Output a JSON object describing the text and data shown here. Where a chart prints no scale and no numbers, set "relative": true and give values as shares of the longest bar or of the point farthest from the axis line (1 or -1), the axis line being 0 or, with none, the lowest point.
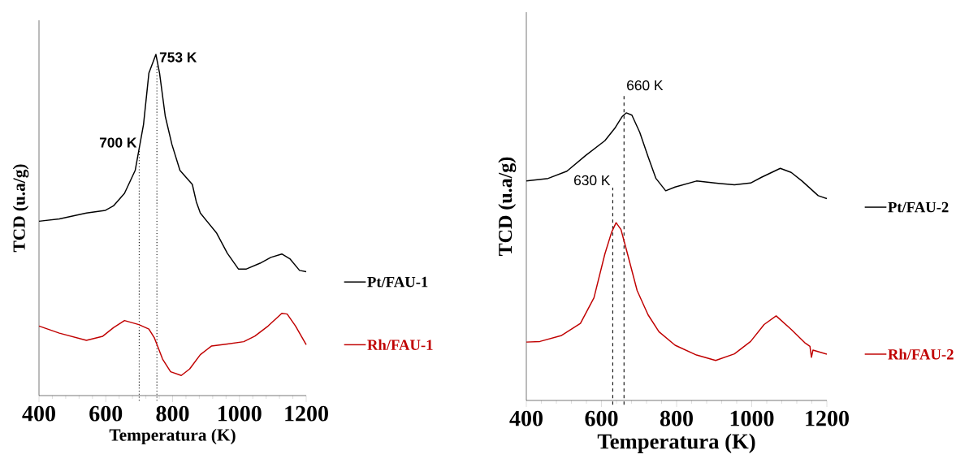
{
  "chart_data": [
    {
      "type": "line",
      "relative": true,
      "xlabel": "Temperatura (K)",
      "ylabel": "TCD (u.a/g)",
      "xlim": [
        400,
        1200
      ],
      "xticks": [
        400,
        600,
        800,
        1000,
        1200
      ],
      "legend": "right",
      "series": [
        {
          "name": "Pt/FAU-1",
          "color": "#000000",
          "x": [
            400,
            461,
            542,
            599,
            623,
            656,
            688,
            713,
            729,
            750,
            761,
            778,
            798,
            822,
            859,
            871,
            883,
            932,
            964,
            997,
            1021,
            1062,
            1094,
            1127,
            1151,
            1180,
            1200
          ],
          "values": [
            0.511,
            0.518,
            0.535,
            0.543,
            0.556,
            0.593,
            0.66,
            0.795,
            0.945,
            1,
            0.945,
            0.819,
            0.736,
            0.66,
            0.619,
            0.568,
            0.535,
            0.476,
            0.417,
            0.371,
            0.371,
            0.388,
            0.405,
            0.415,
            0.401,
            0.367,
            0.363
          ]
        },
        {
          "name": "Rh/FAU-1",
          "color": "#c00000",
          "x": [
            400,
            461,
            542,
            591,
            623,
            656,
            699,
            729,
            745,
            770,
            794,
            826,
            851,
            883,
            916,
            964,
            1013,
            1046,
            1086,
            1127,
            1143,
            1168,
            1200
          ],
          "values": [
            0.204,
            0.183,
            0.162,
            0.174,
            0.199,
            0.22,
            0.208,
            0.195,
            0.17,
            0.107,
            0.07,
            0.059,
            0.078,
            0.12,
            0.145,
            0.151,
            0.158,
            0.174,
            0.204,
            0.241,
            0.239,
            0.204,
            0.149
          ]
        }
      ],
      "ref_lines": [
        {
          "axis": "x",
          "value": 753,
          "label": "753 K",
          "line_style": "dotted"
        },
        {
          "axis": "x",
          "value": 700,
          "label": "700 K",
          "line_style": "dotted"
        }
      ]
    },
    {
      "type": "line",
      "relative": true,
      "xlabel": "Temperatura (K)",
      "ylabel": "TCD (u.a/g)",
      "xlim": [
        400,
        1200
      ],
      "xticks": [
        400,
        600,
        800,
        1000,
        1200
      ],
      "legend": "right",
      "series": [
        {
          "name": "Pt/FAU-2",
          "color": "#000000",
          "x": [
            400,
            458,
            508,
            558,
            609,
            637,
            655,
            666,
            681,
            702,
            724,
            745,
            771,
            796,
            853,
            911,
            954,
            997,
            1026,
            1076,
            1105,
            1134,
            1177,
            1200
          ],
          "values": [
            0.763,
            0.772,
            0.797,
            0.852,
            0.903,
            0.949,
            0.987,
            1,
            0.992,
            0.932,
            0.848,
            0.772,
            0.729,
            0.742,
            0.763,
            0.755,
            0.75,
            0.756,
            0.776,
            0.807,
            0.793,
            0.763,
            0.712,
            0.702
          ]
        },
        {
          "name": "Rh/FAU-2",
          "color": "#c00000",
          "x": [
            400,
            436,
            494,
            544,
            580,
            609,
            627,
            639,
            652,
            666,
            695,
            724,
            753,
            796,
            853,
            904,
            954,
            997,
            1033,
            1065,
            1105,
            1141,
            1155,
            1159,
            1163,
            1200
          ],
          "values": [
            0.203,
            0.205,
            0.226,
            0.268,
            0.357,
            0.509,
            0.585,
            0.618,
            0.594,
            0.526,
            0.382,
            0.298,
            0.239,
            0.192,
            0.158,
            0.139,
            0.162,
            0.205,
            0.264,
            0.294,
            0.247,
            0.201,
            0.188,
            0.15,
            0.175,
            0.161
          ]
        }
      ],
      "ref_lines": [
        {
          "axis": "x",
          "value": 660,
          "label": "660 K",
          "line_style": "dashed"
        },
        {
          "axis": "x",
          "value": 630,
          "label": "630 K",
          "line_style": "dashed"
        }
      ]
    }
  ]
}
